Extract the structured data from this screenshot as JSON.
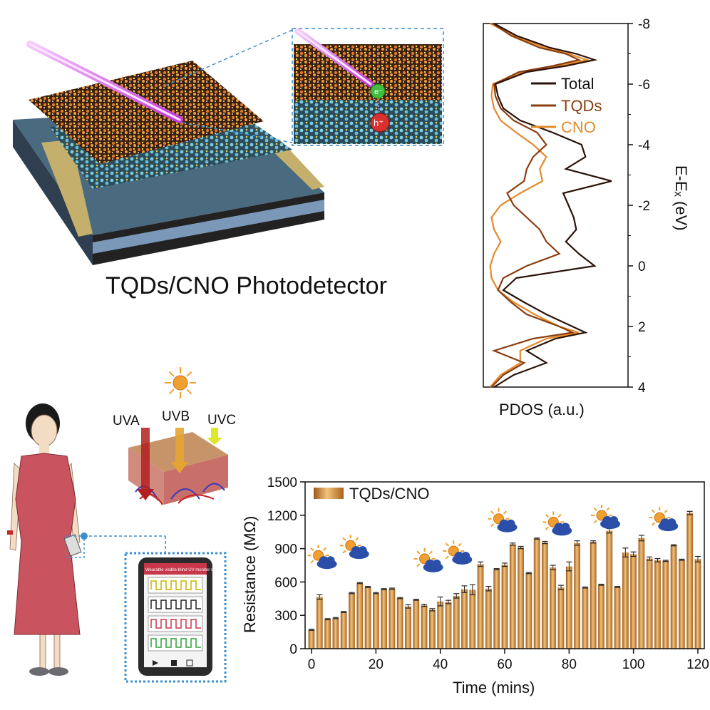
{
  "device": {
    "title": "TQDs/CNO Photodetector",
    "inset_electron_label": "e⁻",
    "inset_hole_label": "h⁺"
  },
  "pdos": {
    "xlabel": "PDOS (a.u.)",
    "ylabel": "E-Eₓ (eV)",
    "yticks": [
      "-8",
      "-6",
      "-4",
      "-2",
      "0",
      "2",
      "4"
    ],
    "ylim": [
      4,
      -8
    ],
    "legend": [
      "Total",
      "TQDs",
      "CNO"
    ],
    "colors": {
      "Total": "#2a130a",
      "TQDs": "#8a3d0f",
      "CNO": "#e58a2b"
    }
  },
  "uv": {
    "labels": [
      "UVA",
      "UVB",
      "UVC"
    ],
    "phone_title": "Wearable visible-blind UV monitor system",
    "phone_colors": [
      "#c9b300",
      "#222222",
      "#c8374a",
      "#2fa13a"
    ]
  },
  "chart_data": [
    {
      "type": "line",
      "orientation": "vertical-energy",
      "ylabel": "E-E_F (eV)",
      "xlabel": "PDOS (a.u.)",
      "ylim": [
        4,
        -8
      ],
      "yticks": [
        -8,
        -6,
        -4,
        -2,
        0,
        2,
        4
      ],
      "legend_position": "top-right",
      "energy": [
        -8,
        -7.6,
        -7.2,
        -7.0,
        -6.8,
        -6.6,
        -6.4,
        -6.0,
        -5.6,
        -5.2,
        -4.8,
        -4.4,
        -4.0,
        -3.6,
        -3.2,
        -2.8,
        -2.4,
        -2.0,
        -1.6,
        -1.2,
        -0.8,
        -0.4,
        0,
        0.4,
        0.8,
        1.2,
        1.6,
        2.0,
        2.2,
        2.4,
        2.8,
        3.2,
        3.6,
        4.0
      ],
      "series": [
        {
          "name": "Total",
          "values": [
            0.05,
            0.22,
            0.48,
            0.68,
            0.82,
            0.6,
            0.3,
            0.06,
            0.08,
            0.12,
            0.25,
            0.5,
            0.72,
            0.75,
            0.6,
            0.95,
            0.58,
            0.62,
            0.66,
            0.68,
            0.6,
            0.7,
            0.82,
            0.22,
            0.12,
            0.28,
            0.45,
            0.65,
            0.75,
            0.52,
            0.3,
            0.45,
            0.2,
            0.05
          ]
        },
        {
          "name": "TQDs",
          "values": [
            0.04,
            0.18,
            0.4,
            0.6,
            0.7,
            0.5,
            0.24,
            0.05,
            0.06,
            0.1,
            0.2,
            0.38,
            0.45,
            0.35,
            0.3,
            0.28,
            0.15,
            0.2,
            0.3,
            0.4,
            0.45,
            0.55,
            0.3,
            0.12,
            0.08,
            0.18,
            0.3,
            0.55,
            0.65,
            0.35,
            0.05,
            0.28,
            0.12,
            0.03
          ]
        },
        {
          "name": "CNO",
          "values": [
            0.02,
            0.2,
            0.44,
            0.62,
            0.76,
            0.55,
            0.27,
            0.04,
            0.03,
            0.05,
            0.1,
            0.22,
            0.35,
            0.45,
            0.4,
            0.42,
            0.25,
            0.1,
            0.03,
            0.05,
            0.1,
            0.05,
            0.02,
            0.03,
            0.08,
            0.2,
            0.36,
            0.55,
            0.7,
            0.45,
            0.25,
            0.25,
            0.1,
            0.02
          ]
        }
      ]
    },
    {
      "type": "bar",
      "title": "",
      "xlabel": "Time (mins)",
      "ylabel": "Resistance (MΩ)",
      "xlim": [
        -2,
        122
      ],
      "ylim": [
        0,
        1500
      ],
      "xticks": [
        0,
        20,
        40,
        60,
        80,
        100,
        120
      ],
      "yticks": [
        0,
        300,
        600,
        900,
        1200,
        1500
      ],
      "legend": "TQDs/CNO",
      "legend_position": "top-left",
      "bar_color": "#c98a3c",
      "x": [
        0,
        2.5,
        5,
        7.5,
        10,
        12.5,
        15,
        17.5,
        20,
        22.5,
        25,
        27.5,
        30,
        32.5,
        35,
        37.5,
        40,
        42.5,
        45,
        47.5,
        50,
        52.5,
        55,
        57.5,
        60,
        62.5,
        65,
        67.5,
        70,
        72.5,
        75,
        77.5,
        80,
        82.5,
        85,
        87.5,
        90,
        92.5,
        95,
        97.5,
        100,
        102.5,
        105,
        107.5,
        110,
        112.5,
        115,
        117.5,
        120
      ],
      "values": [
        170,
        465,
        265,
        275,
        330,
        500,
        590,
        555,
        500,
        535,
        540,
        455,
        380,
        440,
        390,
        350,
        425,
        420,
        475,
        535,
        530,
        760,
        540,
        715,
        755,
        940,
        910,
        680,
        990,
        955,
        730,
        550,
        740,
        950,
        550,
        960,
        575,
        1060,
        555,
        865,
        850,
        995,
        810,
        795,
        790,
        930,
        800,
        1220,
        805
      ],
      "errors": [
        5,
        20,
        5,
        5,
        5,
        5,
        5,
        5,
        5,
        5,
        5,
        5,
        15,
        5,
        10,
        10,
        40,
        15,
        20,
        30,
        45,
        20,
        20,
        5,
        15,
        10,
        10,
        5,
        5,
        10,
        20,
        20,
        40,
        20,
        5,
        10,
        5,
        20,
        5,
        40,
        20,
        25,
        15,
        15,
        5,
        5,
        5,
        15,
        25
      ]
    }
  ]
}
